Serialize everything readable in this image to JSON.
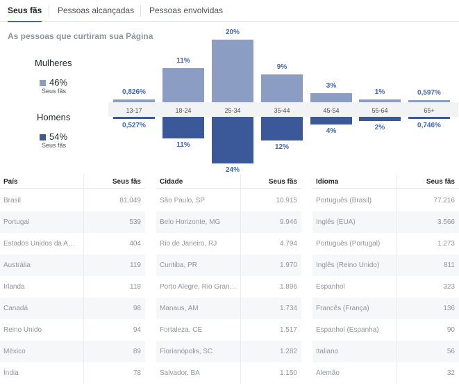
{
  "tabs": [
    {
      "label": "Seus fãs",
      "active": true
    },
    {
      "label": "Pessoas alcançadas",
      "active": false
    },
    {
      "label": "Pessoas envolvidas",
      "active": false
    }
  ],
  "section_title": "As pessoas que curtiram sua Página",
  "gender": {
    "women": {
      "label": "Mulheres",
      "pct": "46%",
      "sub": "Seus fãs",
      "color": "#8b9dc3"
    },
    "men": {
      "label": "Homens",
      "pct": "54%",
      "sub": "Seus fãs",
      "color": "#3b5998"
    }
  },
  "chart_data": {
    "type": "bar",
    "categories": [
      "13-17",
      "18-24",
      "25-34",
      "35-44",
      "45-54",
      "55-64",
      "65+"
    ],
    "series": [
      {
        "name": "Mulheres",
        "values": [
          0.826,
          11,
          20,
          9,
          3,
          1,
          0.597
        ],
        "labels": [
          "0,826%",
          "11%",
          "20%",
          "9%",
          "3%",
          "1%",
          "0,597%"
        ]
      },
      {
        "name": "Homens",
        "values": [
          0.527,
          11,
          24,
          12,
          4,
          2,
          0.746
        ],
        "labels": [
          "0,527%",
          "11%",
          "24%",
          "12%",
          "4%",
          "2%",
          "0,746%"
        ]
      }
    ]
  },
  "tables": [
    {
      "header": {
        "name": "País",
        "value": "Seus fãs"
      },
      "rows": [
        {
          "name": "Brasil",
          "value": "81.049"
        },
        {
          "name": "Portugal",
          "value": "539"
        },
        {
          "name": "Estados Unidos da Amé...",
          "value": "404"
        },
        {
          "name": "Austrália",
          "value": "119"
        },
        {
          "name": "Irlanda",
          "value": "118"
        },
        {
          "name": "Canadá",
          "value": "98"
        },
        {
          "name": "Reino Unido",
          "value": "94"
        },
        {
          "name": "México",
          "value": "89"
        },
        {
          "name": "Índia",
          "value": "78"
        }
      ]
    },
    {
      "header": {
        "name": "Cidade",
        "value": "Seus fãs"
      },
      "rows": [
        {
          "name": "São Paulo, SP",
          "value": "10.915"
        },
        {
          "name": "Belo Horizonte, MG",
          "value": "9.946"
        },
        {
          "name": "Rio de Janeiro, RJ",
          "value": "4.794"
        },
        {
          "name": "Curitiba, PR",
          "value": "1.970"
        },
        {
          "name": "Porto Alegre, Rio Grand...",
          "value": "1.896"
        },
        {
          "name": "Manaus, AM",
          "value": "1.734"
        },
        {
          "name": "Fortaleza, CE",
          "value": "1.517"
        },
        {
          "name": "Florianópolis, SC",
          "value": "1.282"
        },
        {
          "name": "Salvador, BA",
          "value": "1.150"
        }
      ]
    },
    {
      "header": {
        "name": "Idioma",
        "value": "Seus fãs"
      },
      "rows": [
        {
          "name": "Português (Brasil)",
          "value": "77.216"
        },
        {
          "name": "Inglês (EUA)",
          "value": "3.566"
        },
        {
          "name": "Português (Portugal)",
          "value": "1.273"
        },
        {
          "name": "Inglês (Reino Unido)",
          "value": "811"
        },
        {
          "name": "Espanhol",
          "value": "323"
        },
        {
          "name": "Francês (França)",
          "value": "136"
        },
        {
          "name": "Espanhol (Espanha)",
          "value": "90"
        },
        {
          "name": "Italiano",
          "value": "56"
        },
        {
          "name": "Alemão",
          "value": "32"
        }
      ]
    }
  ]
}
